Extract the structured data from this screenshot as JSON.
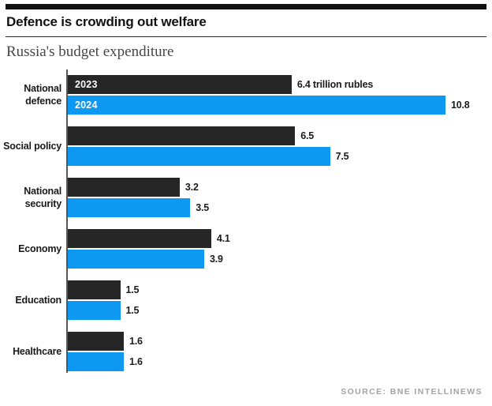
{
  "header": {
    "topbar_color": "#111111",
    "title": "Defence is crowding out welfare",
    "subtitle": "Russia's budget expenditure"
  },
  "chart_data": {
    "type": "bar",
    "orientation": "horizontal",
    "title": "Russia's budget expenditure",
    "unit": "trillion rubles",
    "xlim": [
      0,
      10.8
    ],
    "grid": false,
    "legend": "series names printed inside first pair of bars",
    "categories": [
      "National defence",
      "Social policy",
      "National security",
      "Economy",
      "Education",
      "Healthcare"
    ],
    "series": [
      {
        "name": "2023",
        "color": "#262626",
        "values": [
          6.4,
          6.5,
          3.2,
          4.1,
          1.5,
          1.6
        ]
      },
      {
        "name": "2024",
        "color": "#0d98f2",
        "values": [
          10.8,
          7.5,
          3.5,
          3.9,
          1.5,
          1.6
        ]
      }
    ],
    "value_labels": [
      [
        "6.4 trillion rubles",
        "10.8"
      ],
      [
        "6.5",
        "7.5"
      ],
      [
        "3.2",
        "3.5"
      ],
      [
        "4.1",
        "3.9"
      ],
      [
        "1.5",
        "1.5"
      ],
      [
        "1.6",
        "1.6"
      ]
    ]
  },
  "source": {
    "label": "SOURCE: BNE INTELLINEWS"
  }
}
